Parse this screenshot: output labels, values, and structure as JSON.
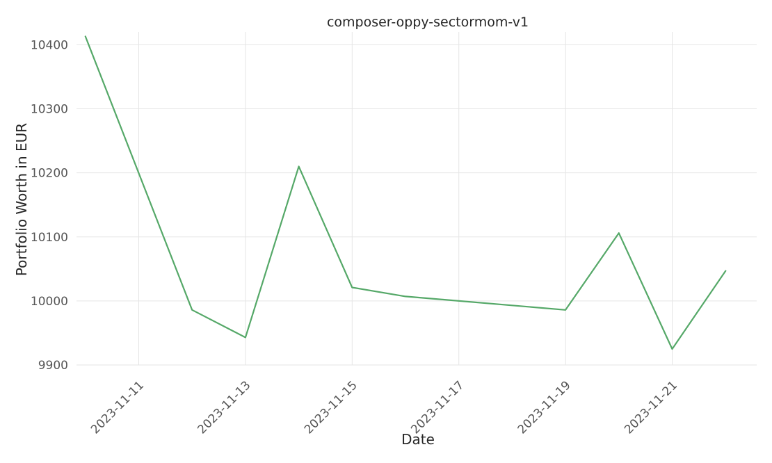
{
  "chart_data": {
    "type": "line",
    "title": "composer-oppy-sectormom-v1",
    "xlabel": "Date",
    "ylabel": "Portfolio Worth in EUR",
    "ylim": [
      9900,
      10420
    ],
    "xlim": [
      "2023-11-09T20:00",
      "2023-11-22T14:00"
    ],
    "grid": true,
    "legend": "none",
    "y_ticks": [
      9900,
      10000,
      10100,
      10200,
      10300,
      10400
    ],
    "x_ticks": [
      "2023-11-11",
      "2023-11-13",
      "2023-11-15",
      "2023-11-17",
      "2023-11-19",
      "2023-11-21"
    ],
    "series": [
      {
        "name": "composer-oppy-sectormom-v1",
        "color": "#55a868",
        "x": [
          "2023-11-10",
          "2023-11-12",
          "2023-11-13",
          "2023-11-14",
          "2023-11-15",
          "2023-11-16",
          "2023-11-19",
          "2023-11-20",
          "2023-11-21",
          "2023-11-22"
        ],
        "values": [
          10413,
          9986,
          9943,
          10210,
          10021,
          10007,
          9986,
          10106,
          9925,
          10047
        ]
      }
    ]
  }
}
